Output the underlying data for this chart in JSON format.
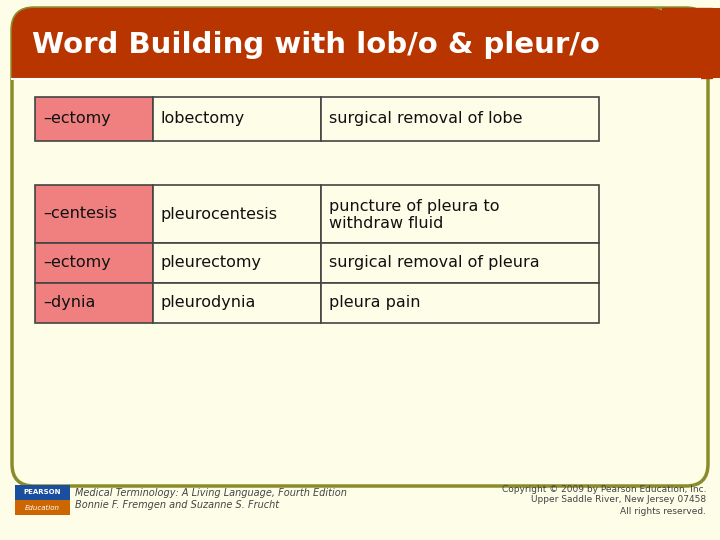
{
  "title": "Word Building with lob/o & pleur/o",
  "title_bg": "#b83500",
  "title_color": "#ffffff",
  "slide_bg": "#fdfde8",
  "border_color": "#8b8b2a",
  "table1_rows": [
    [
      "–ectomy",
      "lobectomy",
      "surgical removal of lobe"
    ]
  ],
  "table2_rows": [
    [
      "–centesis",
      "pleurocentesis",
      "puncture of pleura to\nwithdraw fluid"
    ],
    [
      "–ectomy",
      "pleurectomy",
      "surgical removal of pleura"
    ],
    [
      "–dynia",
      "pleurodynia",
      "pleura pain"
    ]
  ],
  "cell_col1_bg": "#f08080",
  "cell_other_bg": "#fdfde8",
  "cell_border": "#444444",
  "text_color": "#111111",
  "footer_left_line1": "Medical Terminology: A Living Language, Fourth Edition",
  "footer_left_line2": "Bonnie F. Fremgen and Suzanne S. Frucht",
  "footer_right_line1": "Copyright © 2009 by Pearson Education, Inc.",
  "footer_right_line2": "Upper Saddle River, New Jersey 07458",
  "footer_right_line3": "All rights reserved.",
  "pearson_bg_top": "#1a4fa0",
  "pearson_bg_bot": "#cc6600"
}
